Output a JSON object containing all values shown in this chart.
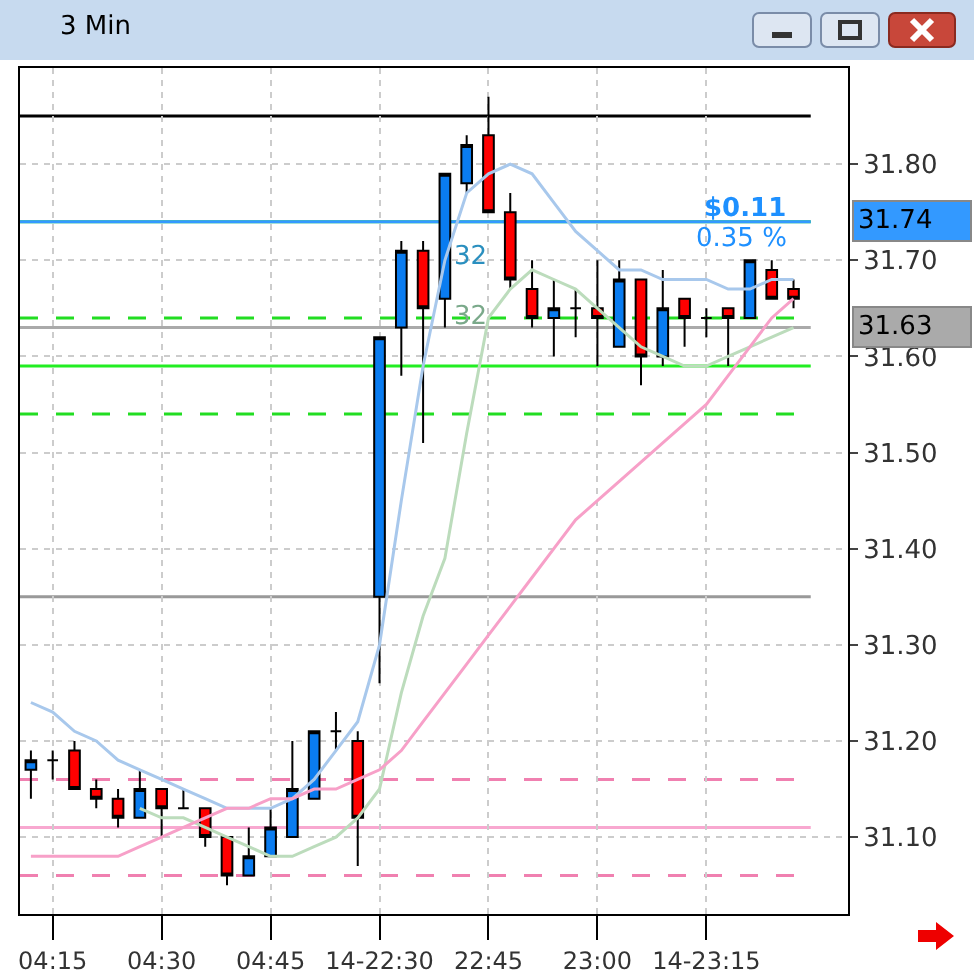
{
  "chart_data": {
    "type": "candlestick",
    "title": "3 Min",
    "categories": [
      null,
      "04:15",
      null,
      null,
      null,
      null,
      "04:30",
      null,
      null,
      null,
      null,
      "04:45",
      null,
      null,
      null,
      null,
      "14-22:30",
      null,
      null,
      null,
      null,
      "22:45",
      null,
      null,
      null,
      null,
      "23:00",
      null,
      null,
      null,
      null,
      "14-23:15",
      null,
      null,
      null,
      null
    ],
    "ohlc": [
      [
        31.17,
        31.19,
        31.14,
        31.18
      ],
      [
        31.18,
        31.19,
        31.16,
        31.18
      ],
      [
        31.19,
        31.2,
        31.15,
        31.15
      ],
      [
        31.15,
        31.16,
        31.13,
        31.14
      ],
      [
        31.14,
        31.15,
        31.11,
        31.12
      ],
      [
        31.12,
        31.17,
        31.12,
        31.15
      ],
      [
        31.15,
        31.15,
        31.1,
        31.13
      ],
      [
        31.13,
        31.15,
        31.13,
        31.13
      ],
      [
        31.13,
        31.13,
        31.09,
        31.1
      ],
      [
        31.1,
        31.1,
        31.05,
        31.06
      ],
      [
        31.06,
        31.11,
        31.06,
        31.08
      ],
      [
        31.08,
        31.13,
        31.08,
        31.11
      ],
      [
        31.1,
        31.2,
        31.1,
        31.15
      ],
      [
        31.14,
        31.21,
        31.14,
        31.21
      ],
      [
        31.21,
        31.23,
        31.19,
        31.21
      ],
      [
        31.2,
        31.21,
        31.07,
        31.12
      ],
      [
        31.35,
        31.62,
        31.26,
        31.62
      ],
      [
        31.63,
        31.72,
        31.58,
        31.71
      ],
      [
        31.71,
        31.72,
        31.51,
        31.65
      ],
      [
        31.66,
        31.79,
        31.63,
        31.79
      ],
      [
        31.78,
        31.83,
        31.77,
        31.82
      ],
      [
        31.83,
        31.87,
        31.75,
        31.75
      ],
      [
        31.75,
        31.77,
        31.67,
        31.68
      ],
      [
        31.67,
        31.7,
        31.63,
        31.64
      ],
      [
        31.64,
        31.68,
        31.6,
        31.65
      ],
      [
        31.65,
        31.67,
        31.62,
        31.65
      ],
      [
        31.65,
        31.7,
        31.59,
        31.64
      ],
      [
        31.61,
        31.7,
        31.61,
        31.68
      ],
      [
        31.68,
        31.68,
        31.57,
        31.6
      ],
      [
        31.6,
        31.69,
        31.59,
        31.65
      ],
      [
        31.66,
        31.66,
        31.61,
        31.64
      ],
      [
        31.64,
        31.65,
        31.62,
        31.64
      ],
      [
        31.65,
        31.65,
        31.59,
        31.64
      ],
      [
        31.64,
        31.7,
        31.64,
        31.7
      ],
      [
        31.69,
        31.7,
        31.66,
        31.66
      ],
      [
        31.67,
        31.68,
        31.65,
        31.66
      ]
    ],
    "series": [
      {
        "type": "line",
        "color": "#a8c8ec",
        "values": [
          31.24,
          31.23,
          31.21,
          31.2,
          31.18,
          31.17,
          31.16,
          31.15,
          31.14,
          31.13,
          31.13,
          31.13,
          31.14,
          31.16,
          31.19,
          31.22,
          31.3,
          31.45,
          31.59,
          31.7,
          31.77,
          31.79,
          31.8,
          31.79,
          31.76,
          31.73,
          31.71,
          31.69,
          31.69,
          31.68,
          31.68,
          31.68,
          31.67,
          31.67,
          31.68,
          31.68
        ]
      },
      {
        "type": "line",
        "color": "#bcdcbc",
        "values": [
          null,
          null,
          null,
          null,
          null,
          31.13,
          31.12,
          31.12,
          31.11,
          31.1,
          31.09,
          31.08,
          31.08,
          31.09,
          31.1,
          31.12,
          31.15,
          31.25,
          31.33,
          31.39,
          31.52,
          31.64,
          31.67,
          31.69,
          31.68,
          31.67,
          31.65,
          31.63,
          31.61,
          31.6,
          31.59,
          31.59,
          31.6,
          31.61,
          31.62,
          31.63
        ]
      },
      {
        "type": "line",
        "color": "#f7a0c8",
        "values": [
          31.08,
          31.08,
          31.08,
          31.08,
          31.08,
          31.09,
          31.1,
          31.11,
          31.12,
          31.13,
          31.13,
          31.14,
          31.14,
          31.15,
          31.15,
          31.16,
          31.17,
          31.19,
          31.22,
          31.25,
          31.28,
          31.31,
          31.34,
          31.37,
          31.4,
          31.43,
          31.45,
          31.47,
          31.49,
          31.51,
          31.53,
          31.55,
          31.58,
          31.61,
          31.64,
          31.66
        ]
      }
    ],
    "ylim": [
      31.02,
      31.9
    ],
    "yticks": [
      {
        "value": 31.1,
        "label": "31.10"
      },
      {
        "value": 31.2,
        "label": "31.20"
      },
      {
        "value": 31.3,
        "label": "31.30"
      },
      {
        "value": 31.4,
        "label": "31.40"
      },
      {
        "value": 31.5,
        "label": "31.50"
      },
      {
        "value": 31.6,
        "label": "31.60"
      },
      {
        "value": 31.7,
        "label": "31.70"
      },
      {
        "value": 31.8,
        "label": "31.80"
      }
    ],
    "grid": true,
    "ref_lines": [
      {
        "axis": "y",
        "value": 31.85,
        "color": "#000000",
        "line_style": "solid"
      },
      {
        "axis": "y",
        "value": 31.74,
        "color": "#22dd22",
        "line_style": "solid"
      },
      {
        "axis": "y",
        "value": 31.74,
        "color": "#3399ff",
        "line_style": "solid",
        "label": "31.74"
      },
      {
        "axis": "y",
        "value": 31.64,
        "color": "#22dd22",
        "line_style": "dashed"
      },
      {
        "axis": "y",
        "value": 31.63,
        "color": "#aaaaaa",
        "line_style": "solid",
        "label": "31.63"
      },
      {
        "axis": "y",
        "value": 31.59,
        "color": "#22ee22",
        "line_style": "solid"
      },
      {
        "axis": "y",
        "value": 31.54,
        "color": "#22dd22",
        "line_style": "dashed"
      },
      {
        "axis": "y",
        "value": 31.35,
        "color": "#999999",
        "line_style": "solid"
      },
      {
        "axis": "y",
        "value": 31.16,
        "color": "#f080b0",
        "line_style": "dashed"
      },
      {
        "axis": "y",
        "value": 31.11,
        "color": "#f8a8d0",
        "line_style": "solid"
      },
      {
        "axis": "y",
        "value": 31.06,
        "color": "#f080b0",
        "line_style": "dashed"
      }
    ],
    "annotations": [
      "$0.11",
      "0.35 %",
      "32",
      "32"
    ]
  }
}
